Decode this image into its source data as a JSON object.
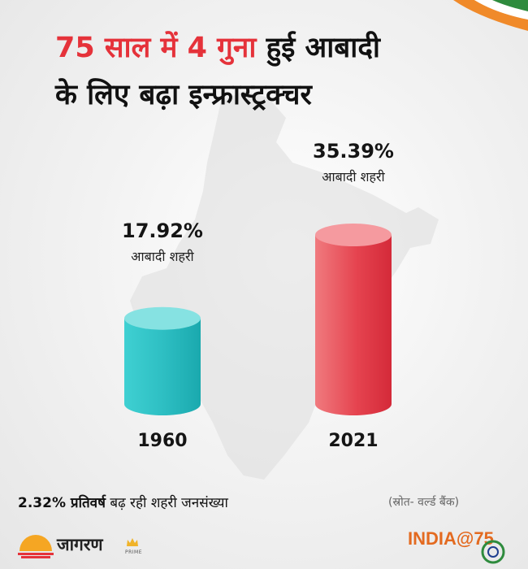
{
  "title": {
    "line1_highlight": "75 साल में 4 गुना",
    "line1_rest": " हुई आबादी",
    "line2": "के लिए बढ़ा इन्फ्रास्ट्रक्चर"
  },
  "chart_data": {
    "type": "bar",
    "categories": [
      "1960",
      "2021"
    ],
    "values": [
      17.92,
      35.39
    ],
    "value_labels": [
      "17.92%",
      "35.39%"
    ],
    "bar_caption": "आबादी शहरी",
    "colors": [
      "#2ec4c7",
      "#e8414e"
    ],
    "ylim": [
      0,
      40
    ]
  },
  "footer": {
    "growth_value": "2.32% प्रतिवर्ष",
    "growth_text": " बढ़ रही शहरी जनसंख्या",
    "source": "(स्रोत- वर्ल्ड बैंक)"
  },
  "brand": {
    "name": "जागरण",
    "tag": "PRIME",
    "event": "INDIA@75"
  },
  "colors": {
    "accent_red": "#e5323a",
    "saffron": "#f08a2a",
    "green": "#2e8b3d"
  }
}
